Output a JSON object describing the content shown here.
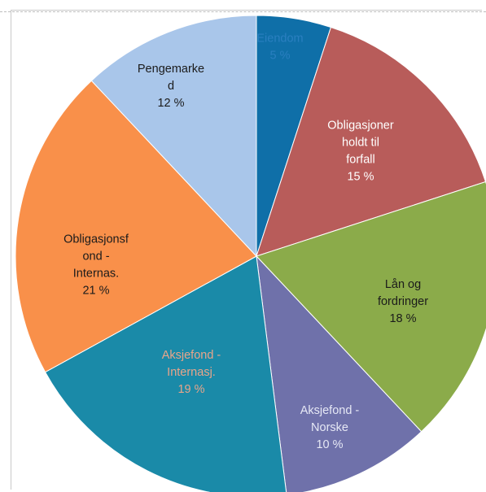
{
  "chart_data": {
    "type": "pie",
    "title": "",
    "slices": [
      {
        "label_lines": [
          "Eiendom"
        ],
        "value_text": "5 %",
        "value": 5,
        "color": "#0f6fa8",
        "text_color": "#2a7fc0"
      },
      {
        "label_lines": [
          "Obligasjoner",
          "holdt til",
          "forfall"
        ],
        "value_text": "15 %",
        "value": 15,
        "color": "#b85c5a",
        "text_color": "#ffffff"
      },
      {
        "label_lines": [
          "Lån og",
          "fordringer"
        ],
        "value_text": "18 %",
        "value": 18,
        "color": "#8bab4a",
        "text_color": "#1b1b1b"
      },
      {
        "label_lines": [
          "Aksjefond -",
          "Norske"
        ],
        "value_text": "10 %",
        "value": 10,
        "color": "#6f71aa",
        "text_color": "#e6e8f5"
      },
      {
        "label_lines": [
          "Aksjefond -",
          "Internasj."
        ],
        "value_text": "19 %",
        "value": 19,
        "color": "#1a8aa8",
        "text_color": "#e9a58a"
      },
      {
        "label_lines": [
          "Obligasjonsf",
          "ond -",
          "Internas."
        ],
        "value_text": "21 %",
        "value": 21,
        "color": "#f9904a",
        "text_color": "#1b1b1b"
      },
      {
        "label_lines": [
          "Pengemarke",
          "d"
        ],
        "value_text": "12 %",
        "value": 12,
        "color": "#a9c6ea",
        "text_color": "#1b1b1b"
      }
    ],
    "legend": "none"
  }
}
